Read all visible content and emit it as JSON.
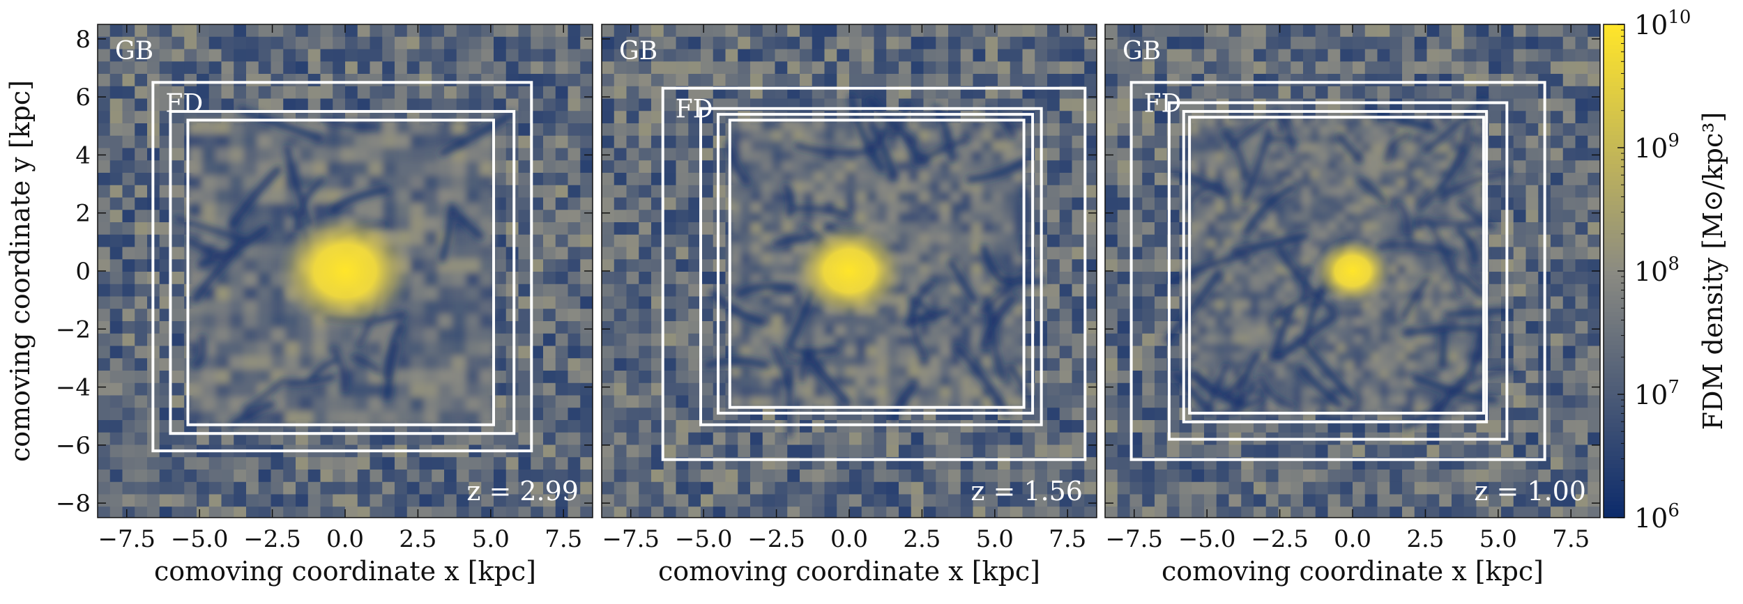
{
  "chart_data": {
    "type": "heatmap",
    "colormap": {
      "low": "#0b2a6b",
      "mid": "#8a8a82",
      "high": "#ffe52a"
    },
    "colorbar": {
      "label": "FDM density [M⊙/kpc³]",
      "scale": "log",
      "range": [
        1000000.0,
        10000000000.0
      ],
      "ticks": [
        {
          "base": "10",
          "exp": "6"
        },
        {
          "base": "10",
          "exp": "7"
        },
        {
          "base": "10",
          "exp": "8"
        },
        {
          "base": "10",
          "exp": "9"
        },
        {
          "base": "10",
          "exp": "10"
        }
      ],
      "tick_values": [
        1000000.0,
        10000000.0,
        100000000.0,
        1000000000.0,
        10000000000.0
      ]
    },
    "panels": [
      {
        "redshift_label": "z = 2.99",
        "xlabel": "comoving coordinate x [kpc]",
        "ylabel": "comoving coordinate y [kpc]",
        "xlim": [
          -8.5,
          8.5
        ],
        "ylim": [
          -8.5,
          8.5
        ],
        "xticks": [
          "−7.5",
          "−5.0",
          "−2.5",
          "0.0",
          "2.5",
          "5.0",
          "7.5"
        ],
        "xtick_values": [
          -7.5,
          -5.0,
          -2.5,
          0.0,
          2.5,
          5.0,
          7.5
        ],
        "yticks": [
          "−8",
          "−6",
          "−4",
          "−2",
          "0",
          "2",
          "4",
          "6",
          "8"
        ],
        "ytick_values": [
          -8,
          -6,
          -4,
          -2,
          0,
          2,
          4,
          6,
          8
        ],
        "region_labels": {
          "outer": "GB",
          "inner": "FD"
        },
        "core_peak_density": 10000000000.0,
        "boxes": [
          [
            -6.6,
            6.5,
            6.4,
            -6.2
          ],
          [
            -6.0,
            5.5,
            5.8,
            -5.6
          ],
          [
            -5.4,
            5.2,
            5.1,
            -5.3
          ]
        ]
      },
      {
        "redshift_label": "z = 1.56",
        "xlabel": "comoving coordinate x [kpc]",
        "ylabel": "",
        "xlim": [
          -8.5,
          8.5
        ],
        "ylim": [
          -8.5,
          8.5
        ],
        "xticks": [
          "−7.5",
          "−5.0",
          "−2.5",
          "0.0",
          "2.5",
          "5.0",
          "7.5"
        ],
        "xtick_values": [
          -7.5,
          -5.0,
          -2.5,
          0.0,
          2.5,
          5.0,
          7.5
        ],
        "region_labels": {
          "outer": "GB",
          "inner": "FD"
        },
        "core_peak_density": 5000000000.0,
        "boxes": [
          [
            -6.4,
            6.3,
            8.1,
            -6.5
          ],
          [
            -5.1,
            5.6,
            6.6,
            -5.3
          ],
          [
            -4.5,
            5.4,
            6.3,
            -4.9
          ],
          [
            -4.1,
            5.2,
            6.0,
            -4.7
          ]
        ]
      },
      {
        "redshift_label": "z = 1.00",
        "xlabel": "comoving coordinate x [kpc]",
        "ylabel": "",
        "xlim": [
          -8.5,
          8.5
        ],
        "ylim": [
          -8.5,
          8.5
        ],
        "xticks": [
          "−7.5",
          "−5.0",
          "−2.5",
          "0.0",
          "2.5",
          "5.0",
          "7.5"
        ],
        "xtick_values": [
          -7.5,
          -5.0,
          -2.5,
          0.0,
          2.5,
          5.0,
          7.5
        ],
        "region_labels": {
          "outer": "GB",
          "inner": "FD"
        },
        "core_peak_density": 2000000000.0,
        "boxes": [
          [
            -7.6,
            6.5,
            6.6,
            -6.5
          ],
          [
            -6.3,
            5.8,
            5.3,
            -5.8
          ],
          [
            -5.8,
            5.5,
            4.6,
            -5.2
          ],
          [
            -5.6,
            5.3,
            4.5,
            -4.9
          ]
        ]
      }
    ]
  }
}
